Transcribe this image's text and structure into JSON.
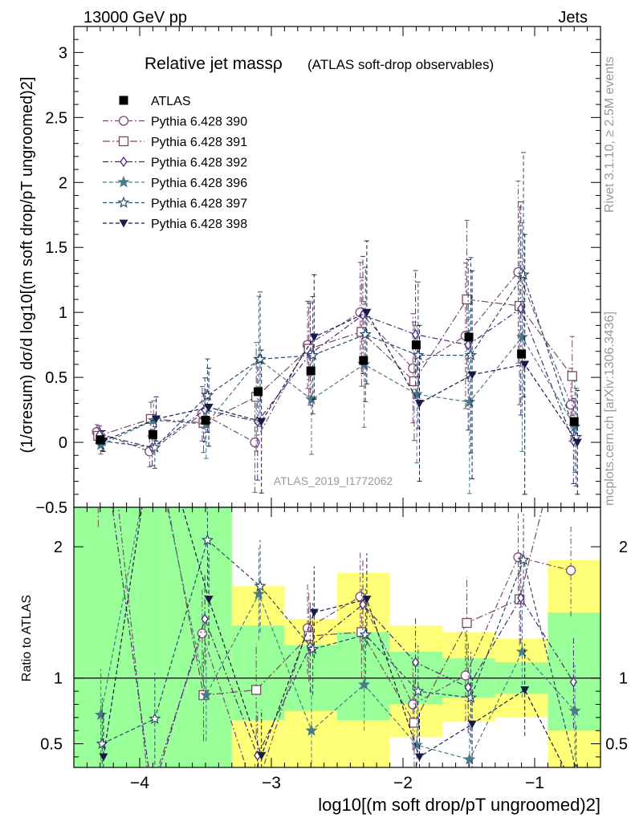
{
  "header": {
    "left": "13000 GeV pp",
    "right": "Jets"
  },
  "side_labels": {
    "rivet": "Rivet 3.1.10, ≥ 2.5M events",
    "mcplots": "mcplots.cern.ch [arXiv:1306.3436]"
  },
  "chart_data": {
    "type": "scatter",
    "title": "Relative jet massρ",
    "subtitle": "(ATLAS soft-drop observables)",
    "watermark": "ATLAS_2019_I1772062",
    "ylabel_main": "(1/σresum) dσ/d log10[(m soft drop/pT ungroomed)2]",
    "ylabel_ratio": "Ratio to ATLAS",
    "xlabel": "log10[(m soft drop/pT ungroomed)2]",
    "xlim": [
      -4.5,
      -0.5
    ],
    "ylim_main": [
      -0.5,
      3.2
    ],
    "ylim_ratio": [
      0.32,
      2.3
    ],
    "xticks": [
      -4,
      -3,
      -2,
      -1
    ],
    "xtick_labels": [
      "−4",
      "−3",
      "−2",
      "−1"
    ],
    "yticks_main": [
      -0.5,
      0,
      0.5,
      1,
      1.5,
      2,
      2.5,
      3
    ],
    "ytick_labels_main": [
      "−0.5",
      "0",
      "0.5",
      "1",
      "1.5",
      "2",
      "2.5",
      "3"
    ],
    "yticks_ratio": [
      0.5,
      1,
      2
    ],
    "ytick_labels_ratio": [
      "0.5",
      "1",
      "2"
    ],
    "legend_position": "top-left",
    "bins": [
      -4.6,
      -4.2,
      -3.8,
      -3.3,
      -2.9,
      -2.5,
      -2.1,
      -1.7,
      -1.3,
      -0.9,
      -0.5
    ],
    "x": [
      -4.3,
      -3.9,
      -3.5,
      -3.1,
      -2.7,
      -2.3,
      -1.9,
      -1.5,
      -1.1,
      -0.7
    ],
    "data": {
      "name": "ATLAS",
      "values": [
        0.02,
        0.06,
        0.17,
        0.39,
        0.55,
        0.63,
        0.75,
        0.81,
        0.68,
        0.16
      ]
    },
    "bands": {
      "green": [
        2.5,
        2.5,
        2.5,
        1.4,
        1.25,
        1.35,
        1.2,
        1.15,
        1.12,
        1.5
      ],
      "yellow_hi": [
        2.5,
        2.5,
        2.5,
        1.7,
        1.45,
        1.8,
        1.4,
        1.35,
        1.3,
        1.9
      ],
      "green_lo": [
        0.25,
        0.25,
        0.25,
        0.68,
        0.75,
        0.68,
        0.8,
        0.85,
        0.88,
        0.6
      ],
      "yellow_lo": [
        0.25,
        0.25,
        0.25,
        0.25,
        0.25,
        0.25,
        0.55,
        0.67,
        0.7,
        0.25
      ]
    },
    "series": [
      {
        "name": "Pythia 6.428 390",
        "marker": "circle-open",
        "color": "#7a4a7a",
        "dash": "7,3,2,3",
        "values": [
          0.08,
          -0.07,
          0.22,
          0.0,
          0.75,
          1.0,
          0.57,
          0.82,
          1.31,
          0.29
        ],
        "ratio": [
          4.0,
          -1.2,
          1.34,
          0.0,
          1.38,
          1.62,
          0.8,
          1.02,
          1.92,
          1.82
        ]
      },
      {
        "name": "Pythia 6.428 391",
        "marker": "square-open",
        "color": "#7a4a5a",
        "dash": "9,3,2,3",
        "values": [
          0.05,
          0.18,
          0.15,
          0.35,
          0.72,
          0.85,
          0.47,
          1.1,
          1.05,
          0.51
        ],
        "ratio": [
          2.5,
          3.0,
          0.87,
          0.91,
          1.32,
          1.35,
          0.66,
          1.42,
          1.6,
          3.2
        ]
      },
      {
        "name": "Pythia 6.428 392",
        "marker": "diamond-open",
        "color": "#4a2a7a",
        "dash": "7,3,2,3",
        "values": [
          0.06,
          -0.04,
          0.25,
          0.16,
          0.68,
          0.98,
          0.83,
          0.75,
          1.03,
          0.01
        ],
        "ratio": [
          3.0,
          -0.7,
          1.45,
          0.41,
          1.24,
          1.56,
          1.12,
          0.93,
          1.61,
          0.97
        ]
      },
      {
        "name": "Pythia 6.428 396",
        "marker": "star-filled",
        "color": "#4a7a8a",
        "dash": "5,3",
        "values": [
          -0.02,
          0.17,
          0.14,
          0.64,
          0.33,
          0.6,
          0.37,
          0.31,
          0.81,
          0.12
        ],
        "ratio": [
          0.72,
          2.8,
          0.87,
          1.64,
          0.6,
          0.95,
          0.49,
          0.38,
          1.2,
          0.75
        ]
      },
      {
        "name": "Pythia 6.428 397",
        "marker": "star-open",
        "color": "#2a4a6a",
        "dash": "5,3",
        "values": [
          0.01,
          -0.04,
          0.36,
          0.64,
          0.67,
          0.83,
          0.67,
          0.67,
          1.29,
          0.04
        ],
        "ratio": [
          0.5,
          0.69,
          2.05,
          1.7,
          1.22,
          1.33,
          0.9,
          0.85,
          1.9,
          0.3
        ]
      },
      {
        "name": "Pythia 6.428 398",
        "marker": "triangle-down",
        "color": "#1a1a4a",
        "dash": "5,3",
        "values": [
          0.01,
          0.18,
          0.27,
          0.16,
          0.81,
          1.0,
          0.3,
          0.52,
          0.6,
          0.0
        ],
        "ratio": [
          0.4,
          3.0,
          1.6,
          0.41,
          1.5,
          1.6,
          0.4,
          0.65,
          0.91,
          0.0
        ]
      }
    ],
    "error_half_main": [
      0.08,
      0.17,
      0.3,
      0.55,
      0.48,
      0.55,
      0.6,
      0.8,
      1.0,
      0.4
    ]
  }
}
